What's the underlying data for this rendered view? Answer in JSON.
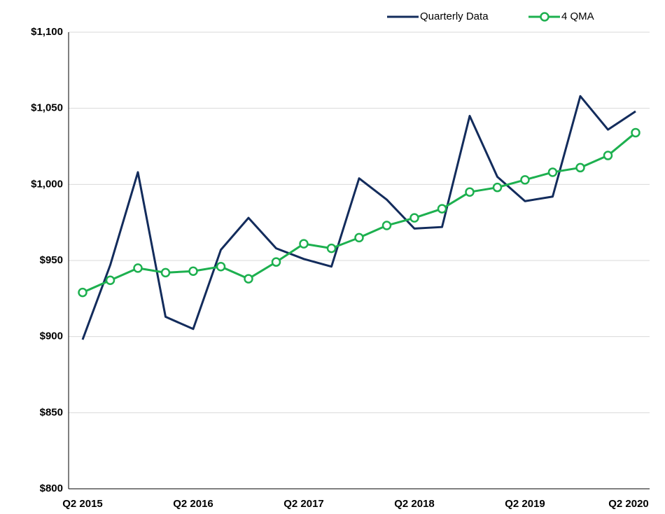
{
  "chart_data": {
    "type": "line",
    "categories": [
      "Q2 2015",
      null,
      null,
      null,
      "Q2 2016",
      null,
      null,
      null,
      "Q2 2017",
      null,
      null,
      null,
      "Q2 2018",
      null,
      null,
      null,
      "Q2 2019",
      null,
      null,
      null,
      "Q2 2020"
    ],
    "series": [
      {
        "name": "Quarterly Data",
        "color": "#132c5c",
        "values": [
          898,
          947,
          1008,
          913,
          905,
          957,
          978,
          958,
          951,
          946,
          1004,
          990,
          971,
          972,
          1045,
          1005,
          989,
          992,
          1058,
          1036,
          1048
        ]
      },
      {
        "name": "4 QMA",
        "color": "#1db04f",
        "markers": true,
        "values": [
          929,
          937,
          945,
          942,
          943,
          946,
          938,
          949,
          961,
          958,
          965,
          973,
          978,
          984,
          995,
          998,
          1003,
          1008,
          1011,
          1019,
          1034
        ]
      }
    ],
    "ylim": [
      800,
      1100
    ],
    "yticks": [
      {
        "value": 800,
        "label": "$800"
      },
      {
        "value": 850,
        "label": "$850"
      },
      {
        "value": 900,
        "label": "$900"
      },
      {
        "value": 950,
        "label": "$950"
      },
      {
        "value": 1000,
        "label": "$1,000"
      },
      {
        "value": 1050,
        "label": "$1,050"
      },
      {
        "value": 1100,
        "label": "$1,100"
      }
    ],
    "grid": true,
    "legend": "top-right"
  }
}
